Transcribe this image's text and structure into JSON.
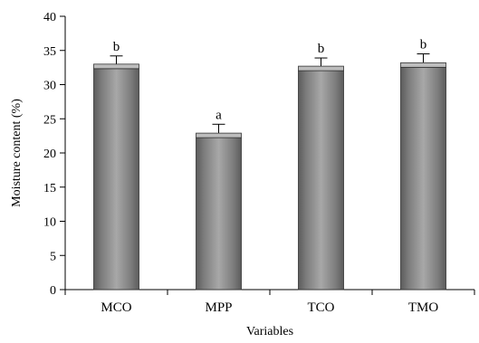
{
  "chart_data": {
    "type": "bar",
    "categories": [
      "MCO",
      "MPP",
      "TCO",
      "TMO"
    ],
    "values": [
      33.0,
      22.9,
      32.7,
      33.2
    ],
    "errors": [
      1.2,
      1.3,
      1.2,
      1.3
    ],
    "significance_labels": [
      "b",
      "a",
      "b",
      "b"
    ],
    "xlabel": "Variables",
    "ylabel": "Moisture content (%)",
    "ylim": [
      0,
      40
    ],
    "yticks": [
      0,
      5,
      10,
      15,
      20,
      25,
      30,
      35,
      40
    ],
    "grid": false,
    "colors": {
      "bar_dark": "#5c5c5c",
      "bar_light": "#a8a8a8",
      "axis": "#000000"
    }
  }
}
